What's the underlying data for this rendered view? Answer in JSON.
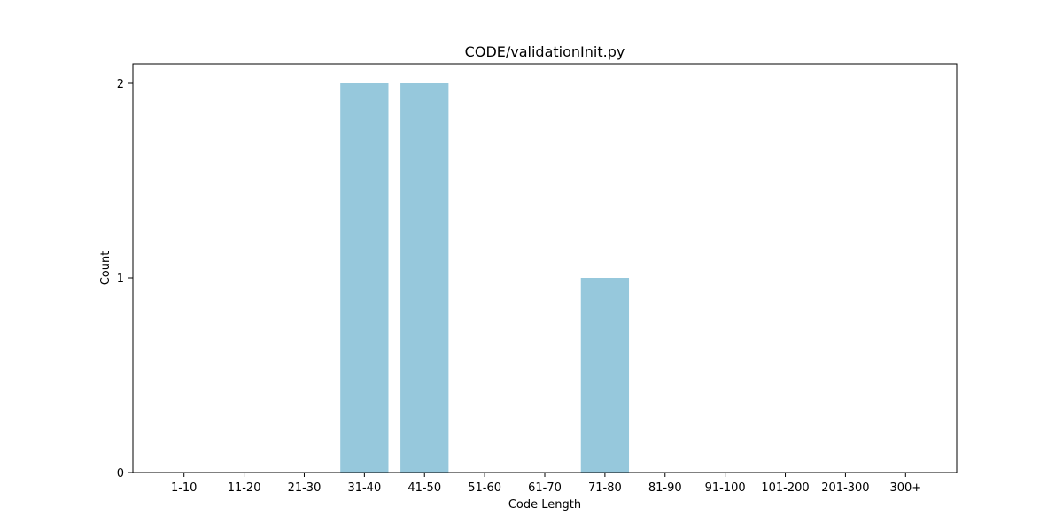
{
  "chart_data": {
    "type": "bar",
    "title": "CODE/validationInit.py",
    "xlabel": "Code Length",
    "ylabel": "Count",
    "categories": [
      "1-10",
      "11-20",
      "21-30",
      "31-40",
      "41-50",
      "51-60",
      "61-70",
      "71-80",
      "81-90",
      "91-100",
      "101-200",
      "201-300",
      "300+"
    ],
    "values": [
      0,
      0,
      0,
      2,
      2,
      0,
      0,
      1,
      0,
      0,
      0,
      0,
      0
    ],
    "ylim": [
      0,
      2.1
    ],
    "yticks": [
      0,
      1,
      2
    ],
    "grid": false,
    "bar_color": "#96c8dc"
  }
}
